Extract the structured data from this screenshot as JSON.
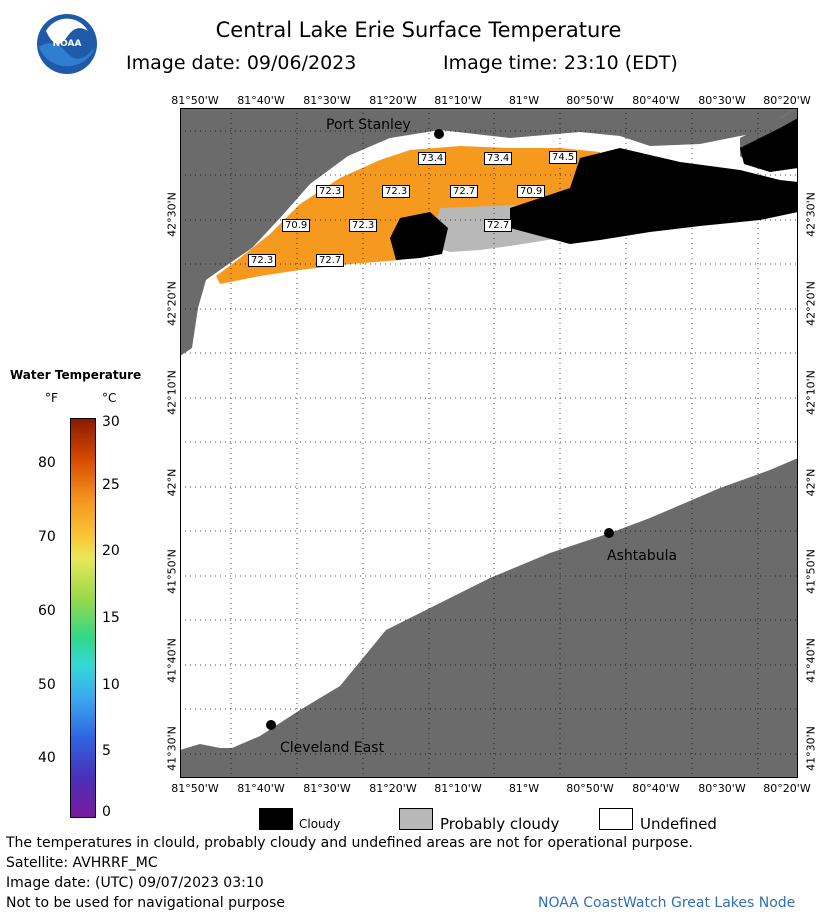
{
  "header": {
    "title": "Central Lake Erie Surface Temperature",
    "image_date_label": "Image date: 09/06/2023",
    "image_time_label": "Image time: 23:10 (EDT)"
  },
  "logo": {
    "text": "NOAA"
  },
  "axes": {
    "lon_labels": [
      "81°50'W",
      "81°40'W",
      "81°30'W",
      "81°20'W",
      "81°10'W",
      "81°W",
      "80°50'W",
      "80°40'W",
      "80°30'W",
      "80°20'W"
    ],
    "lat_labels": [
      "42°30'N",
      "42°20'N",
      "42°10'N",
      "42°N",
      "41°50'N",
      "41°40'N",
      "41°30'N"
    ]
  },
  "places": [
    {
      "name": "Port Stanley"
    },
    {
      "name": "Ashtabula"
    },
    {
      "name": "Cleveland East"
    }
  ],
  "temperature_labels": [
    "73.4",
    "73.4",
    "74.5",
    "72.3",
    "72.3",
    "72.7",
    "70.9",
    "70.9",
    "72.3",
    "72.7",
    "72.3",
    "72.7"
  ],
  "legend": {
    "title": "Water Temperature",
    "unit_f": "°F",
    "unit_c": "°C",
    "f_ticks": [
      "80",
      "70",
      "60",
      "50",
      "40"
    ],
    "c_ticks": [
      "30",
      "25",
      "20",
      "15",
      "10",
      "5",
      "0"
    ]
  },
  "key": {
    "cloudy": "Cloudy",
    "probably_cloudy": "Probably cloudy",
    "undefined": "Undefined"
  },
  "footer": {
    "note": "The temperatures in clould, probably cloudy and undefined areas are not for operational purpose.",
    "satellite": "Satellite: AVHRRF_MC",
    "utc_date": "Image date: (UTC) 09/07/2023  03:10",
    "nav": "Not to be used for navigational purpose",
    "credit": "NOAA CoastWatch Great Lakes Node"
  },
  "colors": {
    "land": "#6b6b6b",
    "water_warm": "#f59a1e",
    "cloudy": "#000000",
    "probably_cloudy": "#b8b8b8",
    "undefined": "#ffffff",
    "credit": "#2f6fb8"
  }
}
